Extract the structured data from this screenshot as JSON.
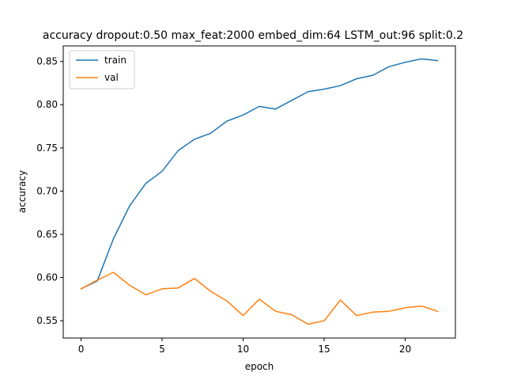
{
  "chart_data": {
    "type": "line",
    "title": "accuracy dropout:0.50 max_feat:2000 embed_dim:64 LSTM_out:96 split:0.2",
    "xlabel": "epoch",
    "ylabel": "accuracy",
    "xlim": [
      -1.1,
      23.1
    ],
    "ylim": [
      0.53,
      0.868
    ],
    "xticks": [
      0,
      5,
      10,
      15,
      20
    ],
    "yticks": [
      0.55,
      0.6,
      0.65,
      0.7,
      0.75,
      0.8,
      0.85
    ],
    "xtick_labels": [
      "0",
      "5",
      "10",
      "15",
      "20"
    ],
    "ytick_labels": [
      "0.55",
      "0.60",
      "0.65",
      "0.70",
      "0.75",
      "0.80",
      "0.85"
    ],
    "grid": false,
    "legend_position": "top-left",
    "x": [
      0,
      1,
      2,
      3,
      4,
      5,
      6,
      7,
      8,
      9,
      10,
      11,
      12,
      13,
      14,
      15,
      16,
      17,
      18,
      19,
      20,
      21,
      22
    ],
    "series": [
      {
        "name": "train",
        "color": "#1f77b4",
        "values": [
          0.587,
          0.596,
          0.645,
          0.683,
          0.709,
          0.723,
          0.747,
          0.76,
          0.767,
          0.781,
          0.788,
          0.798,
          0.795,
          0.805,
          0.815,
          0.818,
          0.822,
          0.83,
          0.834,
          0.844,
          0.849,
          0.853,
          0.851
        ]
      },
      {
        "name": "val",
        "color": "#ff7f0e",
        "values": [
          0.587,
          0.597,
          0.606,
          0.591,
          0.58,
          0.587,
          0.588,
          0.599,
          0.584,
          0.573,
          0.556,
          0.575,
          0.561,
          0.557,
          0.546,
          0.55,
          0.574,
          0.556,
          0.56,
          0.561,
          0.565,
          0.567,
          0.561
        ]
      }
    ]
  }
}
